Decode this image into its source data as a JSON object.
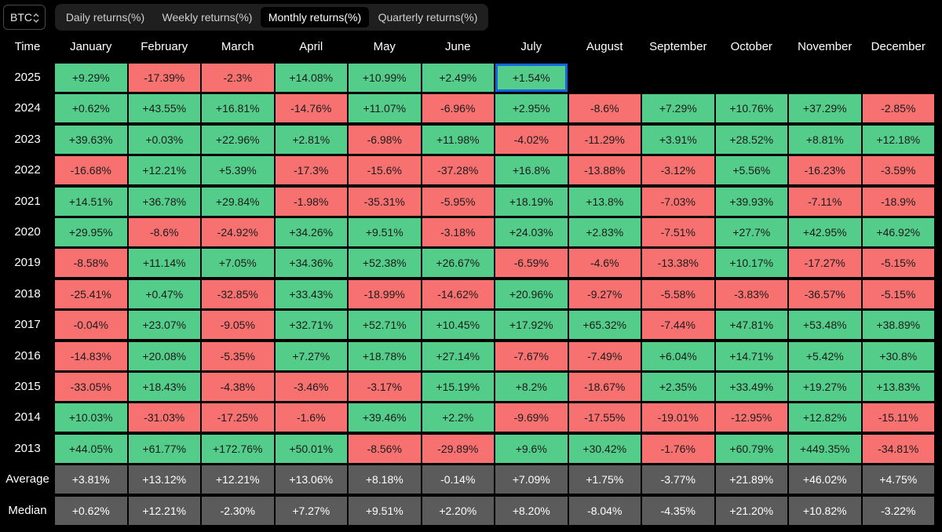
{
  "asset": "BTC",
  "tabs": [
    {
      "label": "Daily returns(%)",
      "active": false
    },
    {
      "label": "Weekly returns(%)",
      "active": false
    },
    {
      "label": "Monthly returns(%)",
      "active": true
    },
    {
      "label": "Quarterly returns(%)",
      "active": false
    }
  ],
  "columns": [
    "Time",
    "January",
    "February",
    "March",
    "April",
    "May",
    "June",
    "July",
    "August",
    "September",
    "October",
    "November",
    "December"
  ],
  "rows": [
    {
      "label": "2025",
      "kind": "year",
      "values": [
        "+9.29%",
        "-17.39%",
        "-2.3%",
        "+14.08%",
        "+10.99%",
        "+2.49%",
        "+1.54%",
        "",
        "",
        "",
        "",
        ""
      ]
    },
    {
      "label": "2024",
      "kind": "year",
      "values": [
        "+0.62%",
        "+43.55%",
        "+16.81%",
        "-14.76%",
        "+11.07%",
        "-6.96%",
        "+2.95%",
        "-8.6%",
        "+7.29%",
        "+10.76%",
        "+37.29%",
        "-2.85%"
      ]
    },
    {
      "label": "2023",
      "kind": "year",
      "values": [
        "+39.63%",
        "+0.03%",
        "+22.96%",
        "+2.81%",
        "-6.98%",
        "+11.98%",
        "-4.02%",
        "-11.29%",
        "+3.91%",
        "+28.52%",
        "+8.81%",
        "+12.18%"
      ]
    },
    {
      "label": "2022",
      "kind": "year",
      "values": [
        "-16.68%",
        "+12.21%",
        "+5.39%",
        "-17.3%",
        "-15.6%",
        "-37.28%",
        "+16.8%",
        "-13.88%",
        "-3.12%",
        "+5.56%",
        "-16.23%",
        "-3.59%"
      ]
    },
    {
      "label": "2021",
      "kind": "year",
      "values": [
        "+14.51%",
        "+36.78%",
        "+29.84%",
        "-1.98%",
        "-35.31%",
        "-5.95%",
        "+18.19%",
        "+13.8%",
        "-7.03%",
        "+39.93%",
        "-7.11%",
        "-18.9%"
      ]
    },
    {
      "label": "2020",
      "kind": "year",
      "values": [
        "+29.95%",
        "-8.6%",
        "-24.92%",
        "+34.26%",
        "+9.51%",
        "-3.18%",
        "+24.03%",
        "+2.83%",
        "-7.51%",
        "+27.7%",
        "+42.95%",
        "+46.92%"
      ]
    },
    {
      "label": "2019",
      "kind": "year",
      "values": [
        "-8.58%",
        "+11.14%",
        "+7.05%",
        "+34.36%",
        "+52.38%",
        "+26.67%",
        "-6.59%",
        "-4.6%",
        "-13.38%",
        "+10.17%",
        "-17.27%",
        "-5.15%"
      ]
    },
    {
      "label": "2018",
      "kind": "year",
      "values": [
        "-25.41%",
        "+0.47%",
        "-32.85%",
        "+33.43%",
        "-18.99%",
        "-14.62%",
        "+20.96%",
        "-9.27%",
        "-5.58%",
        "-3.83%",
        "-36.57%",
        "-5.15%"
      ]
    },
    {
      "label": "2017",
      "kind": "year",
      "values": [
        "-0.04%",
        "+23.07%",
        "-9.05%",
        "+32.71%",
        "+52.71%",
        "+10.45%",
        "+17.92%",
        "+65.32%",
        "-7.44%",
        "+47.81%",
        "+53.48%",
        "+38.89%"
      ]
    },
    {
      "label": "2016",
      "kind": "year",
      "values": [
        "-14.83%",
        "+20.08%",
        "-5.35%",
        "+7.27%",
        "+18.78%",
        "+27.14%",
        "-7.67%",
        "-7.49%",
        "+6.04%",
        "+14.71%",
        "+5.42%",
        "+30.8%"
      ]
    },
    {
      "label": "2015",
      "kind": "year",
      "values": [
        "-33.05%",
        "+18.43%",
        "-4.38%",
        "-3.46%",
        "-3.17%",
        "+15.19%",
        "+8.2%",
        "-18.67%",
        "+2.35%",
        "+33.49%",
        "+19.27%",
        "+13.83%"
      ]
    },
    {
      "label": "2014",
      "kind": "year",
      "values": [
        "+10.03%",
        "-31.03%",
        "-17.25%",
        "-1.6%",
        "+39.46%",
        "+2.2%",
        "-9.69%",
        "-17.55%",
        "-19.01%",
        "-12.95%",
        "+12.82%",
        "-15.11%"
      ]
    },
    {
      "label": "2013",
      "kind": "year",
      "values": [
        "+44.05%",
        "+61.77%",
        "+172.76%",
        "+50.01%",
        "-8.56%",
        "-29.89%",
        "+9.6%",
        "+30.42%",
        "-1.76%",
        "+60.79%",
        "+449.35%",
        "-34.81%"
      ]
    },
    {
      "label": "Average",
      "kind": "stat",
      "values": [
        "+3.81%",
        "+13.12%",
        "+12.21%",
        "+13.06%",
        "+8.18%",
        "-0.14%",
        "+7.09%",
        "+1.75%",
        "-3.77%",
        "+21.89%",
        "+46.02%",
        "+4.75%"
      ]
    },
    {
      "label": "Median",
      "kind": "stat",
      "values": [
        "+0.62%",
        "+12.21%",
        "-2.30%",
        "+7.27%",
        "+9.51%",
        "+2.20%",
        "+8.20%",
        "-8.04%",
        "-4.35%",
        "+21.20%",
        "+10.82%",
        "-3.22%"
      ]
    }
  ],
  "selected_cell": {
    "row": "2025",
    "column": "July"
  },
  "colors": {
    "positive": "#55cd8a",
    "negative": "#f87171",
    "stat": "#5b5b5b",
    "selection": "#1266e0",
    "background": "#000000"
  }
}
